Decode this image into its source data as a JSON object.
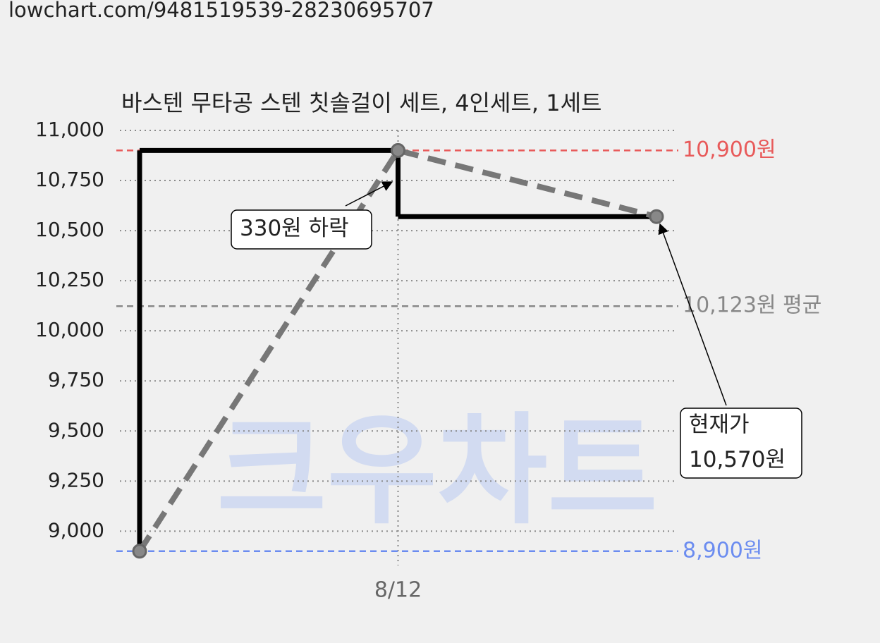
{
  "url": "lowchart.com/9481519539-28230695707",
  "watermark": "크우차트",
  "chart_data": {
    "type": "line",
    "title": "바스텐 무타공 스텐 칫솔걸이 세트, 4인세트, 1세트",
    "categories": [
      null,
      "8/12",
      null
    ],
    "series": [
      {
        "values": [
          8900,
          10900,
          10570
        ],
        "color": "#777777",
        "step_color": "#000000"
      }
    ],
    "ylim": [
      8850,
      11000
    ],
    "yticks": [
      {
        "value": 9000,
        "label": "9,000"
      },
      {
        "value": 9250,
        "label": "9,250"
      },
      {
        "value": 9500,
        "label": "9,500"
      },
      {
        "value": 9750,
        "label": "9,750"
      },
      {
        "value": 10000,
        "label": "10,000"
      },
      {
        "value": 10250,
        "label": "10,250"
      },
      {
        "value": 10500,
        "label": "10,500"
      },
      {
        "value": 10750,
        "label": "10,750"
      },
      {
        "value": 11000,
        "label": "11,000"
      }
    ],
    "grid": true,
    "reference_lines": [
      {
        "value": 10900,
        "label": "10,900원",
        "color": "#e85a5a"
      },
      {
        "value": 10123,
        "label": "10,123원 평균",
        "color": "#888888"
      },
      {
        "value": 8900,
        "label": "8,900원",
        "color": "#6b8cf0"
      }
    ],
    "annotations": [
      {
        "lines": [
          "330원 하락"
        ]
      },
      {
        "lines": [
          "현재가",
          "10,570원"
        ]
      }
    ]
  }
}
